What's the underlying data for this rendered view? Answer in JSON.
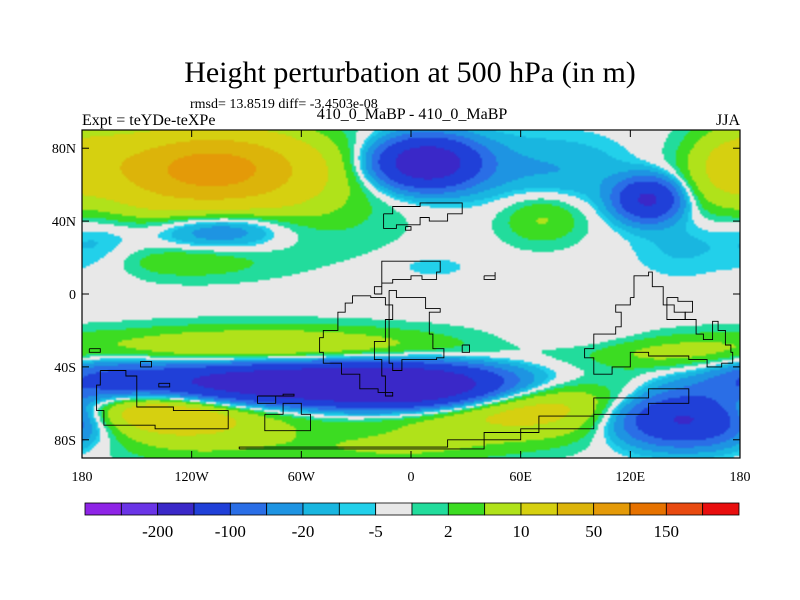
{
  "chart_data": {
    "type": "contour-map",
    "title": "Height perturbation at 500 hPa (in m)",
    "stats": "rmsd= 13.8519 diff= -3.4503e-08",
    "left_label": "Expt = teYDe-teXPe",
    "center_label": "410_0_MaBP - 410_0_MaBP",
    "right_label": "JJA",
    "lon_range": [
      -180,
      180
    ],
    "lat_range": [
      -90,
      90
    ],
    "x_ticks": [
      {
        "lon": -180,
        "label": "180"
      },
      {
        "lon": -120,
        "label": "120W"
      },
      {
        "lon": -60,
        "label": "60W"
      },
      {
        "lon": 0,
        "label": "0"
      },
      {
        "lon": 60,
        "label": "60E"
      },
      {
        "lon": 120,
        "label": "120E"
      },
      {
        "lon": 180,
        "label": "180"
      }
    ],
    "y_ticks": [
      {
        "lat": 80,
        "label": "80N"
      },
      {
        "lat": 40,
        "label": "40N"
      },
      {
        "lat": 0,
        "label": "0"
      },
      {
        "lat": -40,
        "label": "40S"
      },
      {
        "lat": -80,
        "label": "80S"
      }
    ],
    "colorbar": {
      "colors": [
        "#8e24e6",
        "#6a34e6",
        "#3a28c8",
        "#2040d8",
        "#2a6ee6",
        "#1e94e2",
        "#19b6e0",
        "#22d0ea",
        "#e8e8e8",
        "#22dc9c",
        "#3cdc22",
        "#b0e21a",
        "#d6d010",
        "#dcb40a",
        "#e49a08",
        "#e67200",
        "#e84a10",
        "#e80e0e"
      ],
      "labels": [
        {
          "index": 1,
          "text": "-200"
        },
        {
          "index": 3,
          "text": "-100"
        },
        {
          "index": 5,
          "text": "-20"
        },
        {
          "index": 7,
          "text": "-5"
        },
        {
          "index": 9,
          "text": "2"
        },
        {
          "index": 11,
          "text": "10"
        },
        {
          "index": 13,
          "text": "50"
        },
        {
          "index": 15,
          "text": "150"
        }
      ]
    },
    "field_features": [
      {
        "lon": -108,
        "lat": 70,
        "value": 55,
        "sx": 38,
        "sy": 14
      },
      {
        "lon": -115,
        "lat": 55,
        "value": 20,
        "sx": 60,
        "sy": 22
      },
      {
        "lon": -172,
        "lat": 78,
        "value": 8,
        "sx": 16,
        "sy": 12
      },
      {
        "lon": -103,
        "lat": 36,
        "value": -22,
        "sx": 26,
        "sy": 8
      },
      {
        "lon": -140,
        "lat": 33,
        "value": -6,
        "sx": 40,
        "sy": 10
      },
      {
        "lon": -122,
        "lat": 18,
        "value": 7,
        "sx": 26,
        "sy": 6
      },
      {
        "lon": 20,
        "lat": 70,
        "value": -8,
        "sx": 38,
        "sy": 14
      },
      {
        "lon": 8,
        "lat": 72,
        "value": -75,
        "sx": 18,
        "sy": 9
      },
      {
        "lon": 90,
        "lat": 65,
        "value": -7,
        "sx": 30,
        "sy": 15
      },
      {
        "lon": 130,
        "lat": 52,
        "value": -55,
        "sx": 12,
        "sy": 8
      },
      {
        "lon": 150,
        "lat": 28,
        "value": -6,
        "sx": 22,
        "sy": 14
      },
      {
        "lon": 72,
        "lat": 42,
        "value": 12,
        "sx": 16,
        "sy": 10
      },
      {
        "lon": 170,
        "lat": 70,
        "value": 12,
        "sx": 14,
        "sy": 14
      },
      {
        "lon": 12,
        "lat": 15,
        "value": -4,
        "sx": 14,
        "sy": 4
      },
      {
        "lon": -170,
        "lat": 30,
        "value": -5,
        "sx": 14,
        "sy": 16
      },
      {
        "lon": -80,
        "lat": -30,
        "value": 22,
        "sx": 70,
        "sy": 8
      },
      {
        "lon": -60,
        "lat": -49,
        "value": -90,
        "sx": 70,
        "sy": 8
      },
      {
        "lon": 0,
        "lat": -52,
        "value": -60,
        "sx": 32,
        "sy": 8
      },
      {
        "lon": -165,
        "lat": -48,
        "value": -15,
        "sx": 20,
        "sy": 10
      },
      {
        "lon": -150,
        "lat": -62,
        "value": 30,
        "sx": 34,
        "sy": 9
      },
      {
        "lon": -115,
        "lat": -70,
        "value": 18,
        "sx": 40,
        "sy": 14
      },
      {
        "lon": 60,
        "lat": -62,
        "value": 30,
        "sx": 60,
        "sy": 12
      },
      {
        "lon": 150,
        "lat": -68,
        "value": -65,
        "sx": 28,
        "sy": 10
      },
      {
        "lon": 140,
        "lat": -32,
        "value": 10,
        "sx": 34,
        "sy": 7
      },
      {
        "lon": 95,
        "lat": -24,
        "value": -4,
        "sx": 30,
        "sy": 5
      },
      {
        "lon": -10,
        "lat": -85,
        "value": 9,
        "sx": 40,
        "sy": 6
      }
    ],
    "continent_outlines": [
      [
        [
          -15,
          44
        ],
        [
          -10,
          48
        ],
        [
          5,
          50
        ],
        [
          25,
          50
        ],
        [
          28,
          44
        ],
        [
          20,
          40
        ],
        [
          10,
          42
        ],
        [
          5,
          38
        ],
        [
          -8,
          36
        ],
        [
          -15,
          44
        ]
      ],
      [
        [
          -22,
          -1
        ],
        [
          -32,
          -5
        ],
        [
          -36,
          -10
        ],
        [
          -40,
          -20
        ],
        [
          -48,
          -24
        ],
        [
          -50,
          -32
        ],
        [
          -48,
          -38
        ],
        [
          -38,
          -44
        ],
        [
          -28,
          -52
        ],
        [
          -18,
          -54
        ],
        [
          -10,
          -56
        ],
        [
          -14,
          -45
        ],
        [
          -16,
          -36
        ],
        [
          -20,
          -26
        ],
        [
          -14,
          -14
        ],
        [
          -10,
          -6
        ],
        [
          -14,
          -2
        ],
        [
          -22,
          -1
        ]
      ],
      [
        [
          -12,
          2
        ],
        [
          -8,
          -2
        ],
        [
          8,
          -8
        ],
        [
          16,
          -10
        ],
        [
          10,
          -22
        ],
        [
          12,
          -30
        ],
        [
          18,
          -35
        ],
        [
          14,
          -36
        ],
        [
          4,
          -36
        ],
        [
          -5,
          -42
        ],
        [
          -10,
          -38
        ],
        [
          -12,
          -20
        ],
        [
          -12,
          2
        ]
      ],
      [
        [
          -20,
          0
        ],
        [
          -16,
          6
        ],
        [
          -10,
          8
        ],
        [
          0,
          10
        ],
        [
          6,
          8
        ],
        [
          14,
          12
        ],
        [
          16,
          18
        ],
        [
          12,
          18
        ],
        [
          -16,
          4
        ],
        [
          -20,
          0
        ]
      ],
      [
        [
          -170,
          -42
        ],
        [
          -156,
          -45
        ],
        [
          -150,
          -62
        ],
        [
          -130,
          -64
        ],
        [
          -100,
          -66
        ],
        [
          -100,
          -74
        ],
        [
          -140,
          -72
        ],
        [
          -168,
          -64
        ],
        [
          -172,
          -50
        ],
        [
          -170,
          -42
        ]
      ],
      [
        [
          -94,
          -85
        ],
        [
          -40,
          -85
        ],
        [
          10,
          -85
        ],
        [
          40,
          -76
        ],
        [
          70,
          -67
        ],
        [
          100,
          -57
        ],
        [
          130,
          -52
        ],
        [
          150,
          -52
        ],
        [
          152,
          -60
        ],
        [
          130,
          -66
        ],
        [
          100,
          -74
        ],
        [
          60,
          -80
        ],
        [
          20,
          -84
        ],
        [
          -94,
          -85
        ]
      ],
      [
        [
          -80,
          -66
        ],
        [
          -70,
          -60
        ],
        [
          -60,
          -66
        ],
        [
          -55,
          -75
        ],
        [
          -75,
          -75
        ],
        [
          -80,
          -66
        ]
      ],
      [
        [
          120,
          -2
        ],
        [
          122,
          10
        ],
        [
          130,
          12
        ],
        [
          132,
          4
        ],
        [
          138,
          -6
        ],
        [
          144,
          -10
        ],
        [
          150,
          -14
        ],
        [
          156,
          -22
        ],
        [
          160,
          -25
        ],
        [
          165,
          -15
        ],
        [
          168,
          -20
        ],
        [
          172,
          -28
        ],
        [
          175,
          -32
        ],
        [
          176,
          -38
        ],
        [
          170,
          -40
        ],
        [
          162,
          -36
        ],
        [
          152,
          -34
        ],
        [
          140,
          -34
        ],
        [
          130,
          -32
        ],
        [
          120,
          -40
        ],
        [
          110,
          -44
        ],
        [
          100,
          -35
        ],
        [
          95,
          -30
        ],
        [
          100,
          -22
        ],
        [
          112,
          -18
        ],
        [
          115,
          -10
        ],
        [
          112,
          -6
        ],
        [
          120,
          -2
        ]
      ],
      [
        [
          140,
          -2
        ],
        [
          146,
          -4
        ],
        [
          154,
          -10
        ],
        [
          150,
          -14
        ],
        [
          140,
          -8
        ],
        [
          140,
          -2
        ]
      ],
      [
        [
          -148,
          -37
        ],
        [
          -142,
          -37
        ],
        [
          -142,
          -40
        ],
        [
          -148,
          -40
        ],
        [
          -148,
          -37
        ]
      ],
      [
        [
          -138,
          -49
        ],
        [
          -132,
          -49
        ],
        [
          -132,
          -51
        ],
        [
          -138,
          -51
        ],
        [
          -138,
          -49
        ]
      ],
      [
        [
          -176,
          -30
        ],
        [
          -170,
          -30
        ],
        [
          -170,
          -32
        ],
        [
          -176,
          -32
        ],
        [
          -176,
          -30
        ]
      ],
      [
        [
          -84,
          -56
        ],
        [
          -70,
          -55
        ],
        [
          -64,
          -56
        ],
        [
          -74,
          -60
        ],
        [
          -84,
          -56
        ]
      ],
      [
        [
          28,
          -28
        ],
        [
          32,
          -28
        ],
        [
          32,
          -32
        ],
        [
          28,
          -32
        ],
        [
          28,
          -28
        ]
      ],
      [
        [
          40,
          10
        ],
        [
          46,
          12
        ],
        [
          46,
          8
        ],
        [
          40,
          8
        ],
        [
          40,
          10
        ]
      ],
      [
        [
          -3,
          37
        ],
        [
          0,
          37
        ],
        [
          0,
          35
        ],
        [
          -3,
          35
        ],
        [
          -3,
          37
        ]
      ]
    ]
  }
}
